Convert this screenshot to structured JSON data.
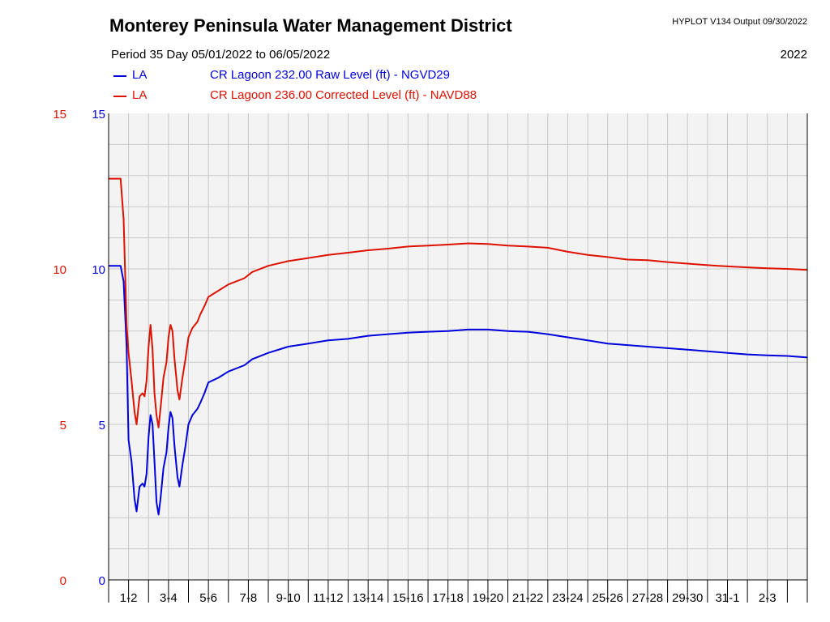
{
  "header": {
    "title": "Monterey Peninsula Water Management District",
    "program": "HYPLOT V134  Output 09/30/2022",
    "period": "Period  35 Day     05/01/2022  to  06/05/2022",
    "year": "2022"
  },
  "legend": [
    {
      "code": "LA",
      "description": "CR Lagoon  232.00 Raw Level (ft) - NGVD29",
      "color": "#0000dd"
    },
    {
      "code": "LA",
      "description": "CR Lagoon  236.00 Corrected Level (ft) - NAVD88",
      "color": "#dd1100"
    }
  ],
  "chart_data": {
    "type": "line",
    "title": "Monterey Peninsula Water Management District",
    "xlabel": "",
    "ylabel": "",
    "xlim": [
      0,
      35
    ],
    "ylim": [
      0,
      15
    ],
    "grid": true,
    "legend_position": "top-left",
    "y_ticks": [
      0,
      5,
      10,
      15
    ],
    "left_axis_tick_color": "#dd1100",
    "right_axis_tick_color": "#0000dd",
    "x_categories": [
      "1-2",
      "3-4",
      "5-6",
      "7-8",
      "9-10",
      "11-12",
      "13-14",
      "15-16",
      "17-18",
      "19-20",
      "21-22",
      "23-24",
      "25-26",
      "27-28",
      "29-30",
      "31-1",
      "2-3"
    ],
    "series": [
      {
        "name": "CR Lagoon  232.00 Raw Level (ft) - NGVD29",
        "color": "#0000dd",
        "points": [
          [
            0,
            10.1
          ],
          [
            0.6,
            10.1
          ],
          [
            0.75,
            9.6
          ],
          [
            0.9,
            7.5
          ],
          [
            1.0,
            4.5
          ],
          [
            1.15,
            3.8
          ],
          [
            1.3,
            2.6
          ],
          [
            1.4,
            2.2
          ],
          [
            1.55,
            3.0
          ],
          [
            1.7,
            3.1
          ],
          [
            1.8,
            3.0
          ],
          [
            1.9,
            3.4
          ],
          [
            2.0,
            4.6
          ],
          [
            2.1,
            5.3
          ],
          [
            2.2,
            5.0
          ],
          [
            2.3,
            3.8
          ],
          [
            2.4,
            2.5
          ],
          [
            2.5,
            2.1
          ],
          [
            2.6,
            2.6
          ],
          [
            2.75,
            3.6
          ],
          [
            2.9,
            4.1
          ],
          [
            3.0,
            4.9
          ],
          [
            3.1,
            5.4
          ],
          [
            3.2,
            5.2
          ],
          [
            3.3,
            4.3
          ],
          [
            3.45,
            3.3
          ],
          [
            3.55,
            3.0
          ],
          [
            3.7,
            3.7
          ],
          [
            3.85,
            4.3
          ],
          [
            4.0,
            5.0
          ],
          [
            4.2,
            5.3
          ],
          [
            4.45,
            5.5
          ],
          [
            4.6,
            5.7
          ],
          [
            4.8,
            6.0
          ],
          [
            5.0,
            6.35
          ],
          [
            5.5,
            6.5
          ],
          [
            6.0,
            6.7
          ],
          [
            6.8,
            6.9
          ],
          [
            7.2,
            7.1
          ],
          [
            8.0,
            7.3
          ],
          [
            9.0,
            7.5
          ],
          [
            10.0,
            7.6
          ],
          [
            11.0,
            7.7
          ],
          [
            12.0,
            7.75
          ],
          [
            13.0,
            7.85
          ],
          [
            14.0,
            7.9
          ],
          [
            15.0,
            7.95
          ],
          [
            16.0,
            7.98
          ],
          [
            17.0,
            8.0
          ],
          [
            18.0,
            8.05
          ],
          [
            19.0,
            8.05
          ],
          [
            20.0,
            8.0
          ],
          [
            21.0,
            7.98
          ],
          [
            22.0,
            7.9
          ],
          [
            23.0,
            7.8
          ],
          [
            24.0,
            7.7
          ],
          [
            25.0,
            7.6
          ],
          [
            26.0,
            7.55
          ],
          [
            27.0,
            7.5
          ],
          [
            28.0,
            7.45
          ],
          [
            29.0,
            7.4
          ],
          [
            30.0,
            7.35
          ],
          [
            31.0,
            7.3
          ],
          [
            32.0,
            7.25
          ],
          [
            33.0,
            7.22
          ],
          [
            34.0,
            7.2
          ],
          [
            35.0,
            7.15
          ]
        ]
      },
      {
        "name": "CR Lagoon  236.00 Corrected Level (ft) - NAVD88",
        "color": "#dd1100",
        "points": [
          [
            0,
            12.9
          ],
          [
            0.6,
            12.9
          ],
          [
            0.75,
            11.6
          ],
          [
            0.9,
            8.2
          ],
          [
            1.0,
            7.3
          ],
          [
            1.15,
            6.4
          ],
          [
            1.3,
            5.4
          ],
          [
            1.4,
            5.0
          ],
          [
            1.55,
            5.9
          ],
          [
            1.7,
            6.0
          ],
          [
            1.8,
            5.9
          ],
          [
            1.9,
            6.4
          ],
          [
            2.0,
            7.5
          ],
          [
            2.1,
            8.2
          ],
          [
            2.2,
            7.4
          ],
          [
            2.3,
            6.0
          ],
          [
            2.4,
            5.3
          ],
          [
            2.5,
            4.9
          ],
          [
            2.6,
            5.5
          ],
          [
            2.75,
            6.5
          ],
          [
            2.9,
            7.0
          ],
          [
            3.0,
            7.8
          ],
          [
            3.1,
            8.2
          ],
          [
            3.2,
            8.0
          ],
          [
            3.3,
            7.1
          ],
          [
            3.45,
            6.1
          ],
          [
            3.55,
            5.8
          ],
          [
            3.7,
            6.5
          ],
          [
            3.85,
            7.1
          ],
          [
            4.0,
            7.8
          ],
          [
            4.2,
            8.1
          ],
          [
            4.45,
            8.3
          ],
          [
            4.6,
            8.55
          ],
          [
            4.8,
            8.8
          ],
          [
            5.0,
            9.1
          ],
          [
            5.5,
            9.3
          ],
          [
            6.0,
            9.5
          ],
          [
            6.8,
            9.7
          ],
          [
            7.2,
            9.9
          ],
          [
            8.0,
            10.1
          ],
          [
            9.0,
            10.25
          ],
          [
            10.0,
            10.35
          ],
          [
            11.0,
            10.45
          ],
          [
            12.0,
            10.52
          ],
          [
            13.0,
            10.6
          ],
          [
            14.0,
            10.65
          ],
          [
            15.0,
            10.72
          ],
          [
            16.0,
            10.75
          ],
          [
            17.0,
            10.78
          ],
          [
            18.0,
            10.82
          ],
          [
            19.0,
            10.8
          ],
          [
            20.0,
            10.75
          ],
          [
            21.0,
            10.72
          ],
          [
            22.0,
            10.68
          ],
          [
            23.0,
            10.55
          ],
          [
            24.0,
            10.45
          ],
          [
            25.0,
            10.38
          ],
          [
            26.0,
            10.3
          ],
          [
            27.0,
            10.28
          ],
          [
            28.0,
            10.22
          ],
          [
            29.0,
            10.17
          ],
          [
            30.0,
            10.12
          ],
          [
            31.0,
            10.08
          ],
          [
            32.0,
            10.05
          ],
          [
            33.0,
            10.02
          ],
          [
            34.0,
            10.0
          ],
          [
            35.0,
            9.97
          ]
        ]
      }
    ]
  }
}
